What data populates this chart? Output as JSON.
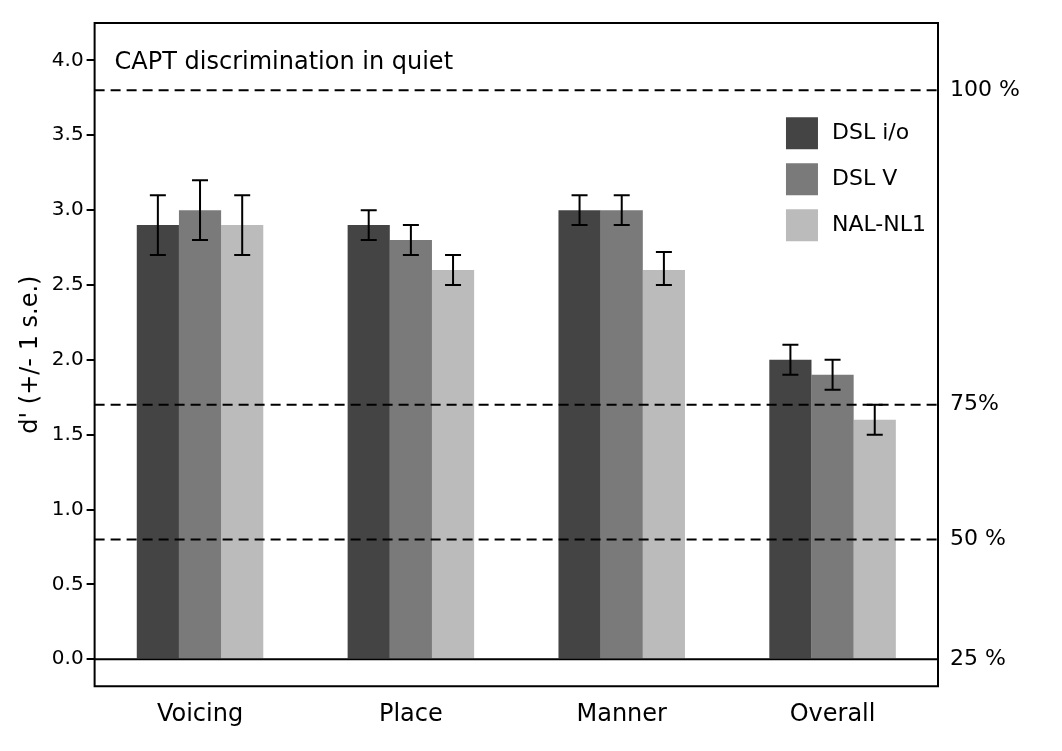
{
  "chart_data": {
    "type": "bar",
    "ylabel": "d' (+/- 1 s.e.)",
    "annotations": [
      "CAPT discrimination in quiet",
      "100 %",
      "75%",
      "50 %",
      "25 %"
    ],
    "categories": [
      "Voicing",
      "Place",
      "Manner",
      "Overall"
    ],
    "series": [
      {
        "name": "DSL i/o",
        "color": "#444444",
        "values": [
          2.9,
          2.9,
          3.0,
          2.0
        ],
        "errors": [
          0.2,
          0.1,
          0.1,
          0.1
        ]
      },
      {
        "name": "DSL V",
        "color": "#7a7a7a",
        "values": [
          3.0,
          2.8,
          3.0,
          1.9
        ],
        "errors": [
          0.2,
          0.1,
          0.1,
          0.1
        ]
      },
      {
        "name": "NAL-NL1",
        "color": "#bbbbbb",
        "values": [
          2.9,
          2.6,
          2.6,
          1.6
        ],
        "errors": [
          0.2,
          0.1,
          [
            2.5,
            2.72
          ],
          0.1
        ]
      }
    ],
    "ylim": [
      -0.18,
      4.25
    ],
    "yticks": [
      {
        "value": 0,
        "label": "0.0"
      },
      0.5,
      {
        "value": 1,
        "label": "1.0"
      },
      1.5,
      {
        "value": 2,
        "label": "2.0"
      },
      2.5,
      {
        "value": 3,
        "label": "3.0"
      },
      3.5,
      {
        "value": 4,
        "label": "4.0"
      }
    ],
    "ref_lines": [
      {
        "axis": "y",
        "value": 3.8,
        "line_style": "dashed"
      },
      {
        "axis": "y",
        "value": 1.7,
        "line_style": "dashed"
      },
      {
        "axis": "y",
        "value": 0.8,
        "line_style": "dashed"
      },
      {
        "axis": "y",
        "value": 0,
        "line_style": "solid"
      }
    ],
    "grid": false,
    "legend": "top right"
  }
}
